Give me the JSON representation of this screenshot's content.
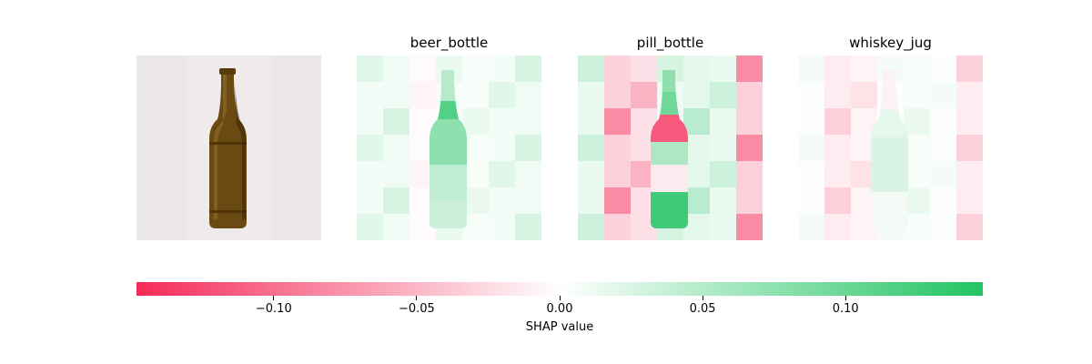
{
  "chart_data": {
    "type": "heatmap",
    "panels": [
      {
        "title": ""
      },
      {
        "title": "beer_bottle"
      },
      {
        "title": "pill_bottle"
      },
      {
        "title": "whiskey_jug"
      }
    ],
    "colorbar": {
      "label": "SHAP value",
      "range": [
        -0.148,
        0.148
      ],
      "ticks": [
        -0.1,
        -0.05,
        0.0,
        0.05,
        0.1
      ],
      "tick_labels": [
        "−0.10",
        "−0.05",
        "0.00",
        "0.05",
        "0.10"
      ],
      "negative_color": "#f42a58",
      "positive_color": "#21c462",
      "neutral_color": "#ffffff"
    }
  }
}
